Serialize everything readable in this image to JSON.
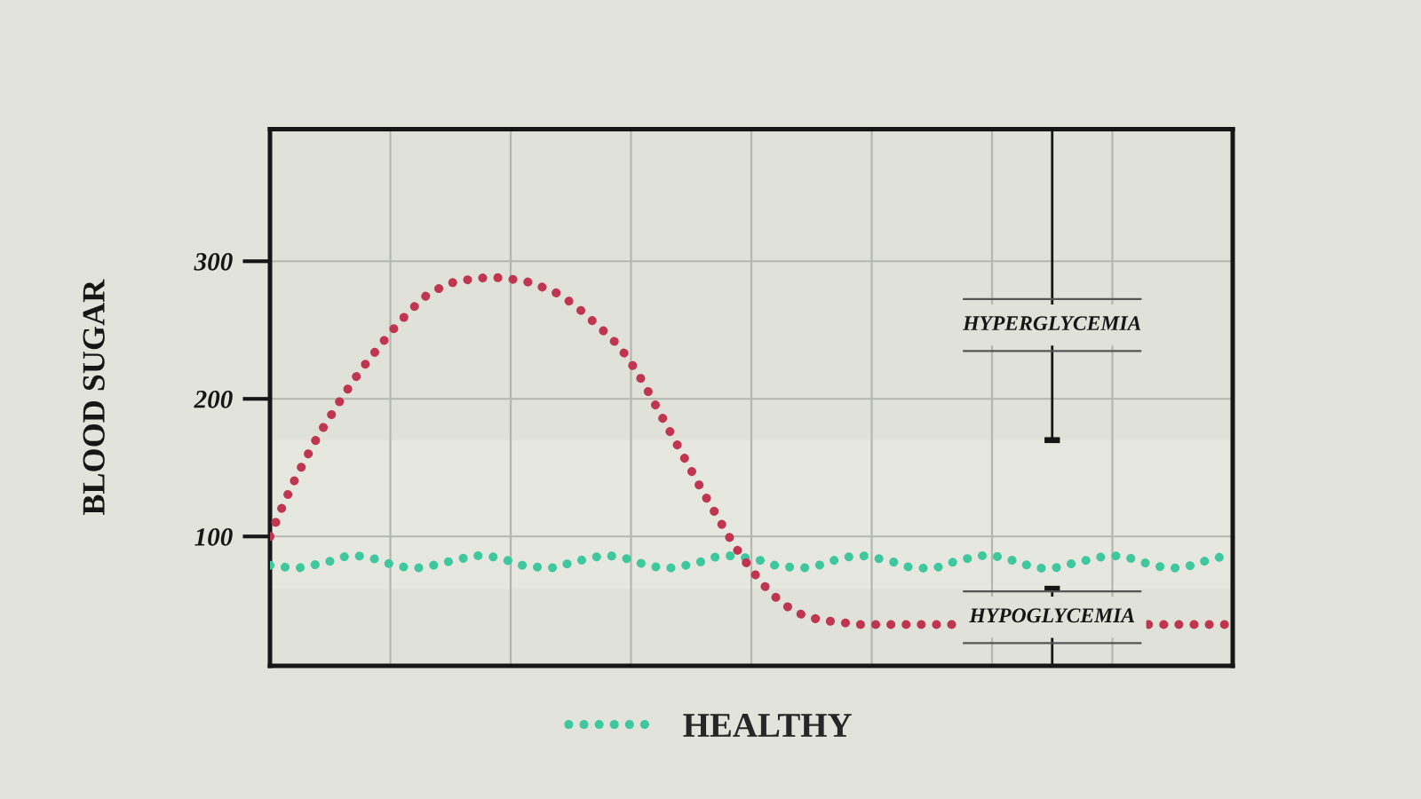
{
  "chart_data": {
    "type": "line",
    "ylabel": "BLOOD SUGAR",
    "categories": [
      null,
      null,
      null,
      null,
      null,
      null,
      null,
      null,
      null,
      null,
      null,
      null,
      null,
      null,
      null,
      null,
      null,
      null,
      null,
      null,
      null,
      null,
      null,
      null,
      null,
      null,
      null,
      null,
      null,
      null,
      null,
      null,
      null,
      null,
      null,
      null,
      null,
      null,
      null,
      null,
      null,
      null,
      null,
      null,
      null,
      null,
      null,
      null,
      null,
      null,
      null,
      null,
      null,
      null,
      null,
      null,
      null,
      null,
      null,
      null,
      null,
      null,
      null,
      null,
      null,
      null,
      null,
      null,
      null,
      null,
      null,
      null,
      null,
      null,
      null,
      null,
      null,
      null,
      null,
      null,
      null
    ],
    "ylim": [
      6,
      396
    ],
    "yticks": [
      100,
      200,
      300
    ],
    "grid": true,
    "legend": "bottom",
    "line_style": "dotted",
    "series": [
      {
        "color": "#c0354f",
        "values": [
          100,
          121,
          140,
          157,
          173,
          187,
          201,
          214,
          226,
          237,
          248,
          258,
          267,
          275,
          280,
          284,
          286,
          287,
          288,
          288,
          287,
          286,
          283,
          280,
          276,
          270,
          263,
          255,
          247,
          238,
          226,
          212,
          196,
          180,
          164,
          148,
          132,
          117,
          102,
          88,
          76,
          65,
          56,
          49,
          44,
          41,
          39,
          38,
          37,
          36,
          36,
          36,
          36,
          36,
          36,
          36,
          36,
          36,
          null,
          null,
          null,
          null,
          null,
          null,
          null,
          null,
          null,
          null,
          null,
          null,
          null,
          null,
          null,
          36,
          36,
          36,
          36,
          36,
          36,
          36,
          36
        ]
      },
      {
        "name": "HEALTHY",
        "color": "#3fc79e",
        "values": [
          79,
          78,
          77,
          78,
          80,
          82,
          85,
          86,
          85,
          83,
          80,
          78,
          77,
          78,
          80,
          82,
          84,
          86,
          86,
          84,
          82,
          79,
          78,
          77,
          78,
          81,
          83,
          85,
          86,
          85,
          83,
          80,
          78,
          77,
          78,
          80,
          82,
          85,
          86,
          85,
          84,
          82,
          79,
          78,
          77,
          78,
          80,
          83,
          85,
          86,
          85,
          83,
          81,
          78,
          77,
          77,
          79,
          82,
          84,
          86,
          86,
          84,
          82,
          79,
          77,
          77,
          79,
          81,
          83,
          85,
          86,
          85,
          83,
          80,
          78,
          77,
          78,
          80,
          83,
          85,
          86
        ]
      }
    ],
    "bands": [
      {
        "axis": "y",
        "from": 170,
        "to": 396,
        "label": "HYPERGLYCEMIA"
      },
      {
        "axis": "y",
        "from": 6,
        "to": 62,
        "label": "HYPOGLYCEMIA"
      }
    ]
  }
}
